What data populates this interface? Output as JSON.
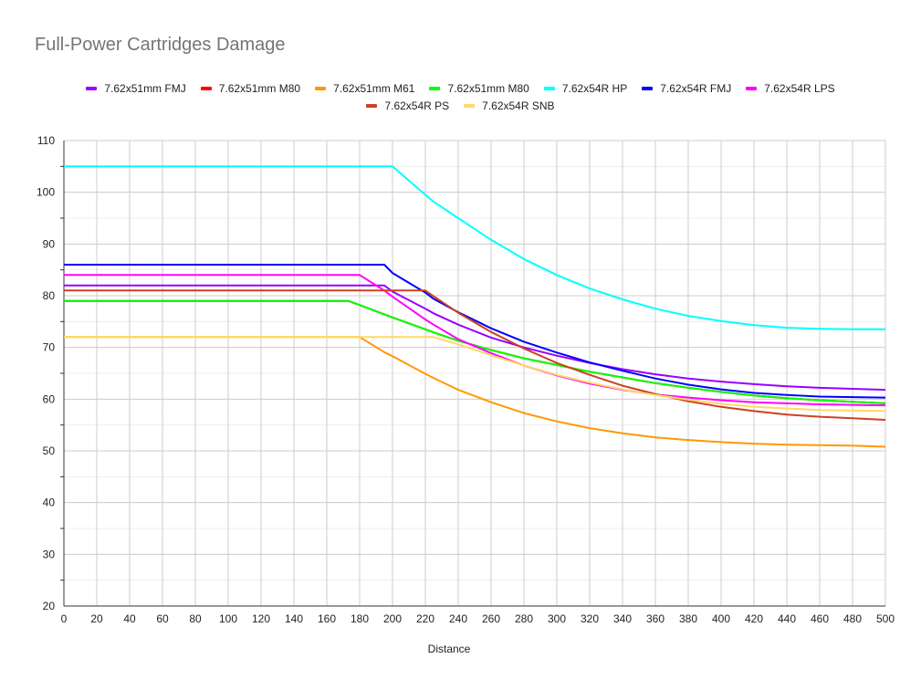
{
  "chart_data": {
    "type": "line",
    "title": "Full-Power Cartridges Damage",
    "xlabel": "Distance",
    "ylabel": "",
    "xlim": [
      0,
      500
    ],
    "ylim": [
      20,
      110
    ],
    "x_ticks": [
      0,
      20,
      40,
      60,
      80,
      100,
      120,
      140,
      160,
      180,
      200,
      220,
      240,
      260,
      280,
      300,
      320,
      340,
      360,
      380,
      400,
      420,
      440,
      460,
      480,
      500
    ],
    "y_ticks": [
      20,
      30,
      40,
      50,
      60,
      70,
      80,
      90,
      100,
      110
    ],
    "grid": true,
    "legend_position": "top",
    "x": [
      0,
      20,
      40,
      60,
      80,
      100,
      120,
      140,
      160,
      173,
      180,
      195,
      200,
      220,
      225,
      240,
      260,
      280,
      300,
      320,
      340,
      360,
      380,
      400,
      420,
      440,
      460,
      480,
      500
    ],
    "series": [
      {
        "name": "7.62x51mm FMJ",
        "color": "#9900ff",
        "values": [
          82,
          82,
          82,
          82,
          82,
          82,
          82,
          82,
          82,
          82,
          82,
          82,
          80.8,
          77.5,
          76.6,
          74.4,
          71.9,
          70.0,
          68.4,
          67.0,
          65.8,
          64.8,
          64.0,
          63.4,
          62.9,
          62.5,
          62.2,
          62.0,
          61.8
        ]
      },
      {
        "name": "7.62x51mm M80",
        "color": "#ff0000",
        "values": [
          79,
          79,
          79,
          79,
          79,
          79,
          79,
          79,
          79,
          79,
          78.2,
          76.4,
          75.8,
          73.5,
          72.9,
          71.3,
          69.5,
          67.9,
          66.6,
          65.3,
          64.2,
          63.1,
          62.2,
          61.4,
          60.7,
          60.2,
          59.8,
          59.5,
          59.2
        ]
      },
      {
        "name": "7.62x51mm M61",
        "color": "#ff9900",
        "values": [
          72,
          72,
          72,
          72,
          72,
          72,
          72,
          72,
          72,
          72,
          72,
          69.1,
          68.3,
          64.9,
          64.1,
          61.8,
          59.4,
          57.3,
          55.7,
          54.4,
          53.4,
          52.6,
          52.1,
          51.7,
          51.4,
          51.2,
          51.1,
          51.0,
          50.8
        ]
      },
      {
        "name": "7.62x51mm M80",
        "color": "#00ff00",
        "values": [
          79,
          79,
          79,
          79,
          79,
          79,
          79,
          79,
          79,
          79,
          78.2,
          76.4,
          75.8,
          73.5,
          72.9,
          71.3,
          69.5,
          67.9,
          66.6,
          65.3,
          64.2,
          63.1,
          62.2,
          61.4,
          60.7,
          60.2,
          59.8,
          59.5,
          59.2
        ]
      },
      {
        "name": "7.62x54R HP",
        "color": "#00ffff",
        "values": [
          105,
          105,
          105,
          105,
          105,
          105,
          105,
          105,
          105,
          105,
          105,
          105,
          105,
          99.5,
          98.2,
          95.0,
          90.8,
          87.1,
          84.0,
          81.4,
          79.3,
          77.5,
          76.1,
          75.1,
          74.3,
          73.8,
          73.6,
          73.5,
          73.5
        ]
      },
      {
        "name": "7.62x54R FMJ",
        "color": "#0000ff",
        "values": [
          86,
          86,
          86,
          86,
          86,
          86,
          86,
          86,
          86,
          86,
          86,
          86,
          84.4,
          80.6,
          79.4,
          76.8,
          73.7,
          71.1,
          69.0,
          67.1,
          65.5,
          64.0,
          62.8,
          61.9,
          61.2,
          60.8,
          60.5,
          60.4,
          60.3
        ]
      },
      {
        "name": "7.62x54R LPS",
        "color": "#ff00ff",
        "values": [
          84,
          84,
          84,
          84,
          84,
          84,
          84,
          84,
          84,
          84,
          84,
          81.0,
          79.8,
          75.4,
          74.4,
          71.6,
          68.9,
          66.5,
          64.6,
          63.0,
          61.8,
          60.9,
          60.3,
          59.8,
          59.4,
          59.2,
          59.0,
          58.9,
          58.8
        ]
      },
      {
        "name": "7.62x54R PS",
        "color": "#cc4125",
        "values": [
          81,
          81,
          81,
          81,
          81,
          81,
          81,
          81,
          81,
          81,
          81,
          81,
          81,
          81,
          79.9,
          76.7,
          73.0,
          69.8,
          67.0,
          64.7,
          62.6,
          61.0,
          59.6,
          58.5,
          57.7,
          57.0,
          56.6,
          56.3,
          56.0
        ]
      },
      {
        "name": "7.62x54R SNB",
        "color": "#ffd966",
        "values": [
          72,
          72,
          72,
          72,
          72,
          72,
          72,
          72,
          72,
          72,
          72,
          72,
          72,
          72,
          72,
          70.6,
          68.5,
          66.5,
          64.7,
          63.2,
          61.9,
          60.8,
          59.9,
          59.1,
          58.5,
          58.2,
          57.9,
          57.8,
          57.7
        ]
      }
    ]
  }
}
